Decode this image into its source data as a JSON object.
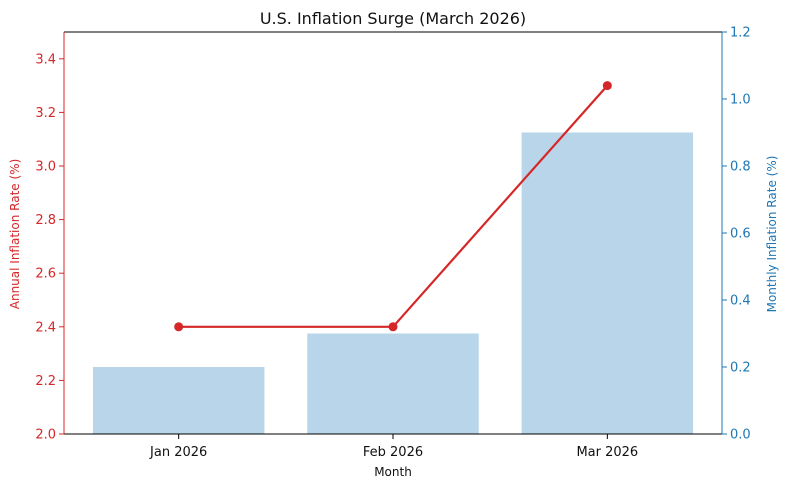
{
  "chart_data": {
    "type": "bar",
    "title": "U.S. Inflation Surge (March 2026)",
    "xlabel": "Month",
    "categories": [
      "Jan 2026",
      "Feb 2026",
      "Mar 2026"
    ],
    "series": [
      {
        "name": "Monthly Inflation Rate (%)",
        "type": "bar",
        "axis": "right",
        "values": [
          0.2,
          0.3,
          0.9
        ],
        "color": "#b9d5ea"
      },
      {
        "name": "Annual Inflation Rate (%)",
        "type": "line",
        "axis": "left",
        "values": [
          2.4,
          2.4,
          3.3
        ],
        "color": "#d62728"
      }
    ],
    "y_left": {
      "label": "Annual Inflation Rate (%)",
      "lim": [
        2.0,
        3.5
      ],
      "ticks": [
        "2.0",
        "2.2",
        "2.4",
        "2.6",
        "2.8",
        "3.0",
        "3.2",
        "3.4"
      ],
      "color": "#d62728"
    },
    "y_right": {
      "label": "Monthly Inflation Rate (%)",
      "lim": [
        0.0,
        1.2
      ],
      "ticks": [
        "0.0",
        "0.2",
        "0.4",
        "0.6",
        "0.8",
        "1.0",
        "1.2"
      ],
      "color": "#1f77b4"
    },
    "grid": false,
    "legend": "none"
  }
}
